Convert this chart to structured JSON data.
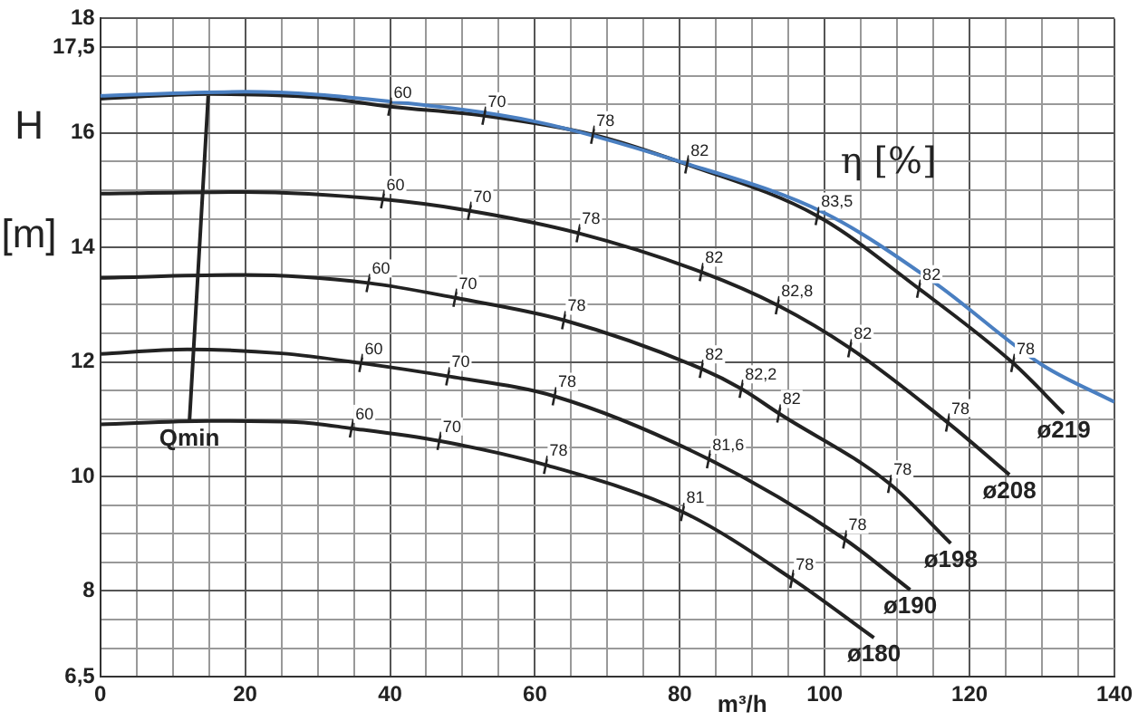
{
  "chart_data": {
    "type": "line",
    "ylabel": "H [m]",
    "xlabel": "m³/h",
    "xlim": [
      0,
      140
    ],
    "xticks": [
      0,
      {
        "value": 5,
        "label": null
      },
      {
        "value": 10,
        "label": null
      },
      {
        "value": 15,
        "label": null
      },
      20,
      {
        "value": 25,
        "label": null
      },
      {
        "value": 30,
        "label": null
      },
      {
        "value": 35,
        "label": null
      },
      40,
      {
        "value": 45,
        "label": null
      },
      {
        "value": 50,
        "label": null
      },
      {
        "value": 55,
        "label": null
      },
      60,
      {
        "value": 65,
        "label": null
      },
      {
        "value": 70,
        "label": null
      },
      {
        "value": 75,
        "label": null
      },
      80,
      {
        "value": 85,
        "label": null
      },
      {
        "value": 90,
        "label": null
      },
      {
        "value": 95,
        "label": null
      },
      100,
      {
        "value": 105,
        "label": null
      },
      {
        "value": 110,
        "label": null
      },
      {
        "value": 115,
        "label": null
      },
      120,
      {
        "value": 125,
        "label": null
      },
      {
        "value": 130,
        "label": null
      },
      {
        "value": 135,
        "label": null
      },
      140
    ],
    "ylim": [
      6.5,
      18
    ],
    "yticks": [
      {
        "value": 6.5,
        "label": "6,5"
      },
      {
        "value": 7,
        "label": null
      },
      {
        "value": 7.5,
        "label": null
      },
      8,
      {
        "value": 8.5,
        "label": null
      },
      {
        "value": 9,
        "label": null
      },
      {
        "value": 9.5,
        "label": null
      },
      10,
      {
        "value": 10.5,
        "label": null
      },
      {
        "value": 11,
        "label": null
      },
      {
        "value": 11.5,
        "label": null
      },
      12,
      {
        "value": 12.5,
        "label": null
      },
      {
        "value": 13,
        "label": null
      },
      {
        "value": 13.5,
        "label": null
      },
      14,
      {
        "value": 14.5,
        "label": null
      },
      {
        "value": 15,
        "label": null
      },
      {
        "value": 15.5,
        "label": null
      },
      16,
      {
        "value": 16.5,
        "label": null
      },
      {
        "value": 17,
        "label": null
      },
      {
        "value": 17.5,
        "label": "17,5"
      },
      18
    ],
    "grid": true,
    "legend": false,
    "marker": "none",
    "line_style": "solid",
    "series": [
      {
        "color": "#4a7fc1",
        "x": [
          0,
          20,
          40,
          60,
          80,
          100,
          115,
          130,
          140
        ],
        "values": [
          16.65,
          16.72,
          16.55,
          16.2,
          15.5,
          14.6,
          13.4,
          11.95,
          11.3
        ]
      },
      {
        "name": "ø219",
        "color": "#222222",
        "x": [
          0,
          15,
          30,
          40,
          53,
          68,
          81,
          99,
          113,
          126,
          133
        ],
        "values": [
          16.6,
          16.68,
          16.62,
          16.46,
          16.3,
          15.97,
          15.45,
          14.55,
          13.28,
          11.98,
          11.1
        ]
      },
      {
        "name": "ø208",
        "color": "#222222",
        "x": [
          0,
          20,
          39,
          51,
          66,
          83,
          93.5,
          103.5,
          117,
          125.5
        ],
        "values": [
          14.94,
          14.97,
          14.84,
          14.64,
          14.25,
          13.57,
          12.99,
          12.24,
          10.94,
          10.03
        ]
      },
      {
        "name": "ø198",
        "color": "#222222",
        "x": [
          0,
          20,
          37,
          49,
          64,
          83,
          88.5,
          93.7,
          109,
          117.4
        ],
        "values": [
          13.47,
          13.52,
          13.38,
          13.12,
          12.73,
          11.88,
          11.53,
          11.1,
          9.87,
          8.83
        ]
      },
      {
        "name": "ø190",
        "color": "#222222",
        "x": [
          0,
          12,
          25,
          36,
          48,
          62.7,
          84,
          102.8,
          111.8
        ],
        "values": [
          12.14,
          12.22,
          12.15,
          11.98,
          11.75,
          11.4,
          10.3,
          8.9,
          8.02
        ]
      },
      {
        "name": "ø180",
        "color": "#222222",
        "x": [
          0,
          15,
          27,
          34.7,
          46.8,
          61.5,
          80.4,
          95.5,
          106.8
        ],
        "values": [
          10.91,
          10.97,
          10.95,
          10.84,
          10.62,
          10.2,
          9.38,
          8.21,
          7.18
        ]
      },
      {
        "name": "Qmin",
        "color": "#222222",
        "x": [
          14.9,
          12.3
        ],
        "values": [
          16.65,
          10.95
        ]
      }
    ],
    "annotations": [
      "η [%]",
      {
        "text": "60",
        "x": 40,
        "y": 16.46
      },
      {
        "text": "70",
        "x": 53,
        "y": 16.3
      },
      {
        "text": "78",
        "x": 68,
        "y": 15.97
      },
      {
        "text": "82",
        "x": 81,
        "y": 15.45
      },
      {
        "text": "83,5",
        "x": 99,
        "y": 14.55
      },
      {
        "text": "82",
        "x": 113,
        "y": 13.28
      },
      {
        "text": "78",
        "x": 126,
        "y": 11.98
      },
      {
        "text": "60",
        "x": 39,
        "y": 14.84
      },
      {
        "text": "70",
        "x": 51,
        "y": 14.64
      },
      {
        "text": "78",
        "x": 66,
        "y": 14.25
      },
      {
        "text": "82",
        "x": 83,
        "y": 13.57
      },
      {
        "text": "82,8",
        "x": 93.5,
        "y": 12.99
      },
      {
        "text": "82",
        "x": 103.5,
        "y": 12.24
      },
      {
        "text": "78",
        "x": 117,
        "y": 10.94
      },
      {
        "text": "60",
        "x": 37,
        "y": 13.38
      },
      {
        "text": "70",
        "x": 49,
        "y": 13.12
      },
      {
        "text": "78",
        "x": 64,
        "y": 12.73
      },
      {
        "text": "82",
        "x": 83,
        "y": 11.88
      },
      {
        "text": "82,2",
        "x": 88.5,
        "y": 11.53
      },
      {
        "text": "82",
        "x": 93.7,
        "y": 11.1
      },
      {
        "text": "78",
        "x": 109,
        "y": 9.87
      },
      {
        "text": "60",
        "x": 36,
        "y": 11.98
      },
      {
        "text": "70",
        "x": 48,
        "y": 11.75
      },
      {
        "text": "78",
        "x": 62.7,
        "y": 11.4
      },
      {
        "text": "81,6",
        "x": 84,
        "y": 10.3
      },
      {
        "text": "78",
        "x": 102.8,
        "y": 8.9
      },
      {
        "text": "60",
        "x": 34.7,
        "y": 10.84
      },
      {
        "text": "70",
        "x": 46.8,
        "y": 10.62
      },
      {
        "text": "78",
        "x": 61.5,
        "y": 10.2
      },
      {
        "text": "81",
        "x": 80.4,
        "y": 9.38
      },
      {
        "text": "78",
        "x": 95.5,
        "y": 8.21
      }
    ]
  }
}
